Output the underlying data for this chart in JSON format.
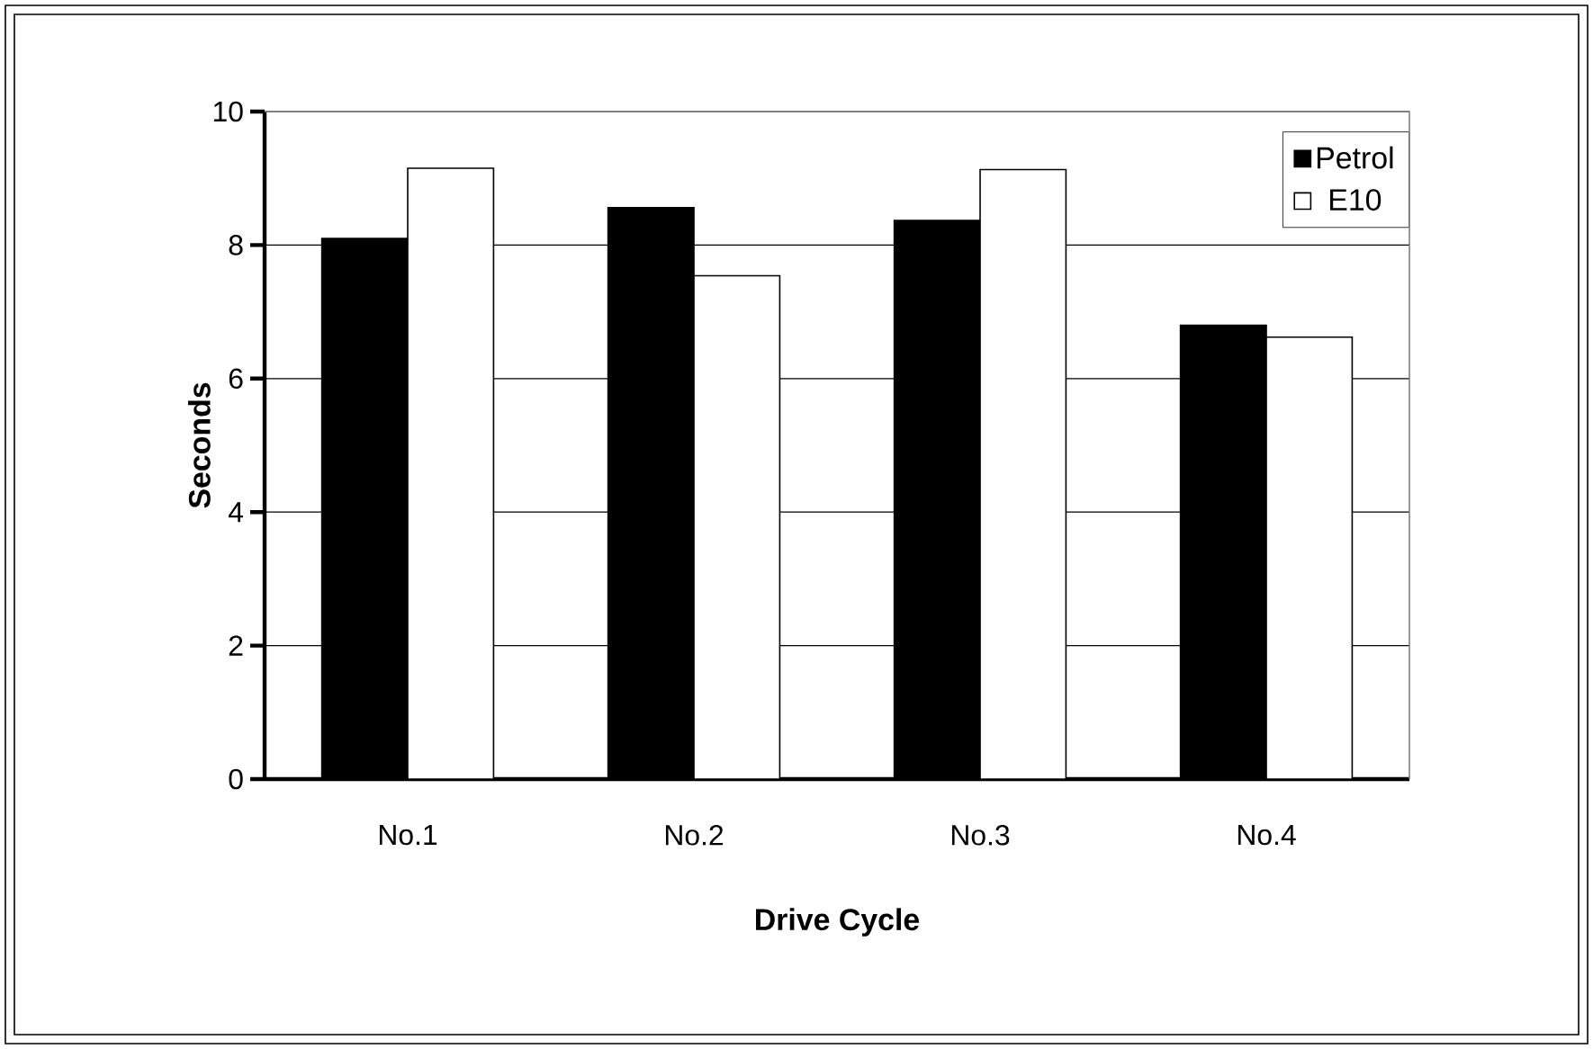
{
  "chart_data": {
    "type": "bar",
    "xlabel": "Drive Cycle",
    "ylabel": "Seconds",
    "categories": [
      "No.1",
      "No.2",
      "No.3",
      "No.4"
    ],
    "series": [
      {
        "name": "Petrol",
        "color": "#000000",
        "values": [
          8.1,
          8.56,
          8.37,
          6.8
        ]
      },
      {
        "name": "E10",
        "color": "#ffffff",
        "values": [
          9.15,
          7.54,
          9.13,
          6.62
        ]
      }
    ],
    "ylim": [
      0,
      10
    ],
    "yticks": [
      0,
      2,
      4,
      6,
      8,
      10
    ],
    "grid": "y",
    "legend": "top right"
  }
}
